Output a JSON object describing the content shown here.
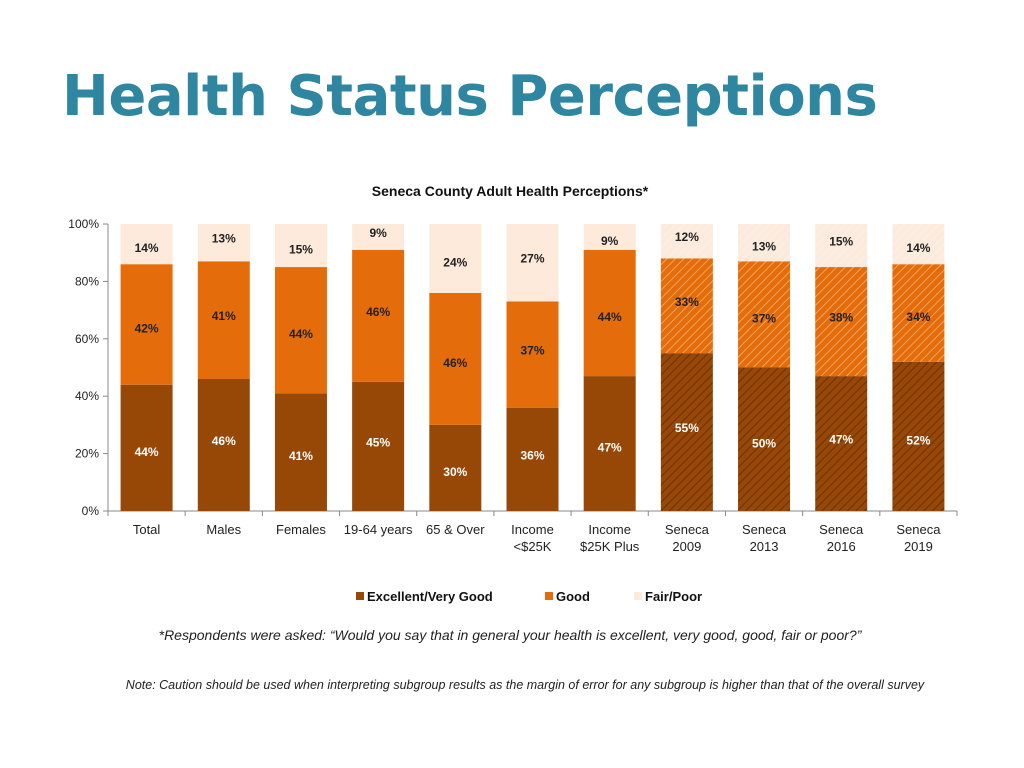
{
  "page": {
    "title": "Health Status Perceptions"
  },
  "chart_data": {
    "type": "bar",
    "stacked": true,
    "title": "Seneca County Adult Health Perceptions*",
    "xlabel": "",
    "ylabel": "",
    "ylim": [
      0,
      100
    ],
    "yticks": [
      "0%",
      "20%",
      "40%",
      "60%",
      "80%",
      "100%"
    ],
    "categories": [
      [
        "Total"
      ],
      [
        "Males"
      ],
      [
        "Females"
      ],
      [
        "19-64 years"
      ],
      [
        "65 & Over"
      ],
      [
        "Income",
        "<$25K"
      ],
      [
        "Income",
        "$25K Plus"
      ],
      [
        "Seneca",
        "2009"
      ],
      [
        "Seneca",
        "2013"
      ],
      [
        "Seneca",
        "2016"
      ],
      [
        "Seneca",
        "2019"
      ]
    ],
    "series": [
      {
        "name": "Excellent/Very Good",
        "color": "#974706",
        "values": [
          44,
          46,
          41,
          45,
          30,
          36,
          47,
          55,
          50,
          47,
          52
        ]
      },
      {
        "name": "Good",
        "color": "#e46c0a",
        "values": [
          42,
          41,
          44,
          46,
          46,
          37,
          44,
          33,
          37,
          38,
          34
        ]
      },
      {
        "name": "Fair/Poor",
        "color": "#fdeada",
        "values": [
          14,
          13,
          15,
          9,
          24,
          27,
          9,
          12,
          13,
          15,
          14
        ]
      }
    ],
    "hatched_categories": [
      "Seneca 2009",
      "Seneca 2013",
      "Seneca 2016",
      "Seneca 2019"
    ],
    "legend_position": "bottom"
  },
  "footnotes": {
    "question": "*Respondents were asked: “Would you say that in general your health is excellent, very good, good, fair or poor?”",
    "caution": "Note: Caution should be used when interpreting subgroup results as the margin of error for any subgroup is higher than that of the overall survey"
  }
}
